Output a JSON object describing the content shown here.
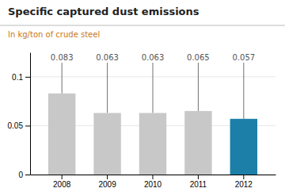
{
  "chart_data": {
    "type": "bar",
    "title": "Specific captured dust emissions",
    "subtitle": "In kg/ton of crude steel",
    "categories": [
      "2008",
      "2009",
      "2010",
      "2011",
      "2012"
    ],
    "values": [
      0.083,
      0.063,
      0.063,
      0.065,
      0.057
    ],
    "colors": [
      "#c8c8c8",
      "#c8c8c8",
      "#c8c8c8",
      "#c8c8c8",
      "#1b7fa8"
    ],
    "ylim": [
      0,
      0.125
    ],
    "yticks": [
      0,
      0.05,
      0.1
    ],
    "grid": true,
    "data_labels": true
  }
}
